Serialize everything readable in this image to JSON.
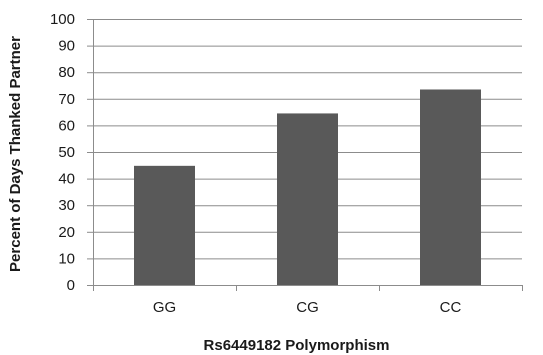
{
  "chart_data": {
    "type": "bar",
    "categories": [
      "GG",
      "CG",
      "CC"
    ],
    "values": [
      44.8,
      64.5,
      73.5
    ],
    "title": "",
    "xlabel": "Rs6449182 Polymorphism",
    "ylabel": "Percent of Days Thanked Partner",
    "ylim": [
      0,
      100
    ],
    "yticks": [
      0,
      10,
      20,
      30,
      40,
      50,
      60,
      70,
      80,
      90,
      100
    ],
    "grid": true,
    "legend": "none",
    "bar_color": "#595959",
    "grid_color": "#8c8c8c",
    "axis_color": "#8c8c8c"
  }
}
